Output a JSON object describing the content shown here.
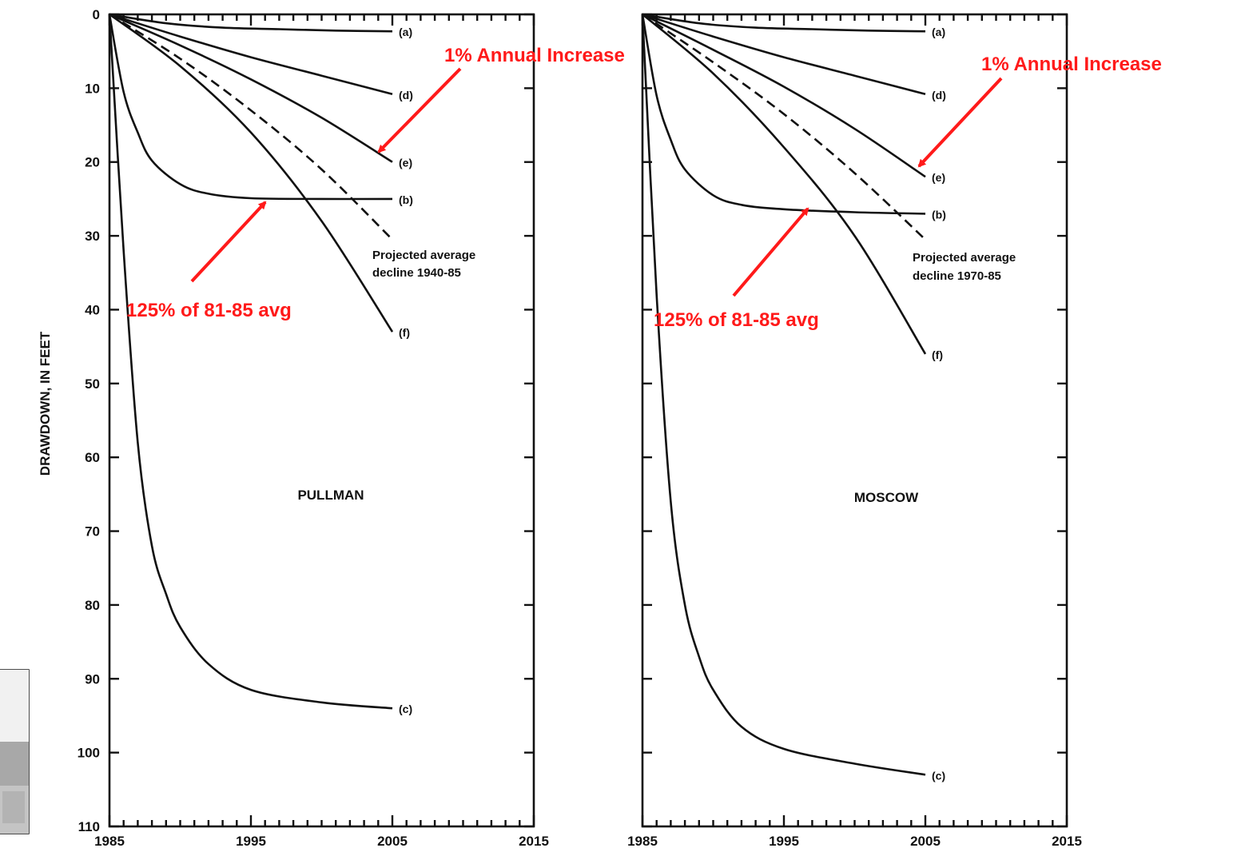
{
  "y_axis_label": "DRAWDOWN, IN FEET",
  "colors": {
    "annotation": "#ff1a1a",
    "ink": "#111111",
    "background": "#ffffff"
  },
  "chart_data": [
    {
      "type": "line",
      "title": "PULLMAN",
      "ylabel": "DRAWDOWN, IN FEET",
      "xlim": [
        1985,
        2015
      ],
      "ylim": [
        0,
        110
      ],
      "y_inverted": true,
      "x_ticks": [
        "1985",
        "1995",
        "2005",
        "2015"
      ],
      "y_ticks": [
        "0",
        "10",
        "20",
        "30",
        "40",
        "50",
        "60",
        "70",
        "80",
        "90",
        "100",
        "110"
      ],
      "series": [
        {
          "name": "(a)",
          "style": "solid",
          "x": [
            1985,
            1989,
            1993,
            1997,
            2001,
            2005
          ],
          "y": [
            0,
            1.2,
            1.8,
            2.0,
            2.2,
            2.3
          ]
        },
        {
          "name": "(d)",
          "style": "solid",
          "x": [
            1985,
            1990,
            1995,
            2000,
            2005
          ],
          "y": [
            0,
            3.0,
            5.8,
            8.3,
            10.8
          ]
        },
        {
          "name": "(e)",
          "style": "solid",
          "x": [
            1985,
            1990,
            1995,
            2000,
            2005
          ],
          "y": [
            0,
            4.2,
            8.8,
            14.0,
            20.0
          ]
        },
        {
          "name": "(b)",
          "style": "solid",
          "x": [
            1985,
            1986,
            1987,
            1988,
            1990,
            1992,
            1995,
            2000,
            2005
          ],
          "y": [
            0,
            10.5,
            16.0,
            19.8,
            23.0,
            24.3,
            24.9,
            25.0,
            25.0
          ]
        },
        {
          "name": "Projected average decline 1940-85",
          "style": "dashed",
          "x": [
            1985,
            1990,
            1995,
            2000,
            2005
          ],
          "y": [
            0,
            6.0,
            13.0,
            21.0,
            30.5
          ]
        },
        {
          "name": "(f)",
          "style": "solid",
          "x": [
            1985,
            1990,
            1995,
            2000,
            2005
          ],
          "y": [
            0,
            7.0,
            16.0,
            28.0,
            43.0
          ]
        },
        {
          "name": "(c)",
          "style": "solid",
          "x": [
            1985,
            1986,
            1987,
            1988,
            1989,
            1990,
            1992,
            1995,
            2000,
            2005
          ],
          "y": [
            0,
            32.0,
            58.0,
            72.0,
            78.5,
            83.0,
            88.0,
            91.5,
            93.2,
            94.0
          ]
        }
      ],
      "notes": [
        "Projected average",
        "decline 1940-85"
      ],
      "annotations": [
        "1% Annual Increase",
        "125% of 81-85 avg"
      ]
    },
    {
      "type": "line",
      "title": "MOSCOW",
      "ylabel": "",
      "xlim": [
        1985,
        2015
      ],
      "ylim": [
        0,
        110
      ],
      "y_inverted": true,
      "x_ticks": [
        "1985",
        "1995",
        "2005",
        "2015"
      ],
      "series": [
        {
          "name": "(a)",
          "style": "solid",
          "x": [
            1985,
            1989,
            1993,
            1997,
            2001,
            2005
          ],
          "y": [
            0,
            1.2,
            1.8,
            2.0,
            2.2,
            2.3
          ]
        },
        {
          "name": "(d)",
          "style": "solid",
          "x": [
            1985,
            1990,
            1995,
            2000,
            2005
          ],
          "y": [
            0,
            3.0,
            5.8,
            8.3,
            10.8
          ]
        },
        {
          "name": "(e)",
          "style": "solid",
          "x": [
            1985,
            1990,
            1995,
            2000,
            2005
          ],
          "y": [
            0,
            4.8,
            9.8,
            15.5,
            22.0
          ]
        },
        {
          "name": "(b)",
          "style": "solid",
          "x": [
            1985,
            1986,
            1987,
            1988,
            1990,
            1992,
            1995,
            2000,
            2005
          ],
          "y": [
            0,
            11.0,
            17.0,
            21.0,
            24.5,
            25.8,
            26.4,
            26.8,
            27.0
          ]
        },
        {
          "name": "Projected average decline 1970-85",
          "style": "dashed",
          "x": [
            1985,
            1990,
            1995,
            2000,
            2005
          ],
          "y": [
            0,
            6.5,
            13.5,
            21.5,
            30.5
          ]
        },
        {
          "name": "(f)",
          "style": "solid",
          "x": [
            1985,
            1990,
            1995,
            2000,
            2005
          ],
          "y": [
            0,
            8.0,
            18.0,
            30.0,
            46.0
          ]
        },
        {
          "name": "(c)",
          "style": "solid",
          "x": [
            1985,
            1986,
            1987,
            1988,
            1989,
            1990,
            1992,
            1995,
            2000,
            2005
          ],
          "y": [
            0,
            38.0,
            66.0,
            80.0,
            87.0,
            91.5,
            96.5,
            99.5,
            101.5,
            103.0
          ]
        }
      ],
      "notes": [
        "Projected average",
        "decline 1970-85"
      ],
      "annotations": [
        "1% Annual Increase",
        "125% of 81-85 avg"
      ]
    }
  ]
}
